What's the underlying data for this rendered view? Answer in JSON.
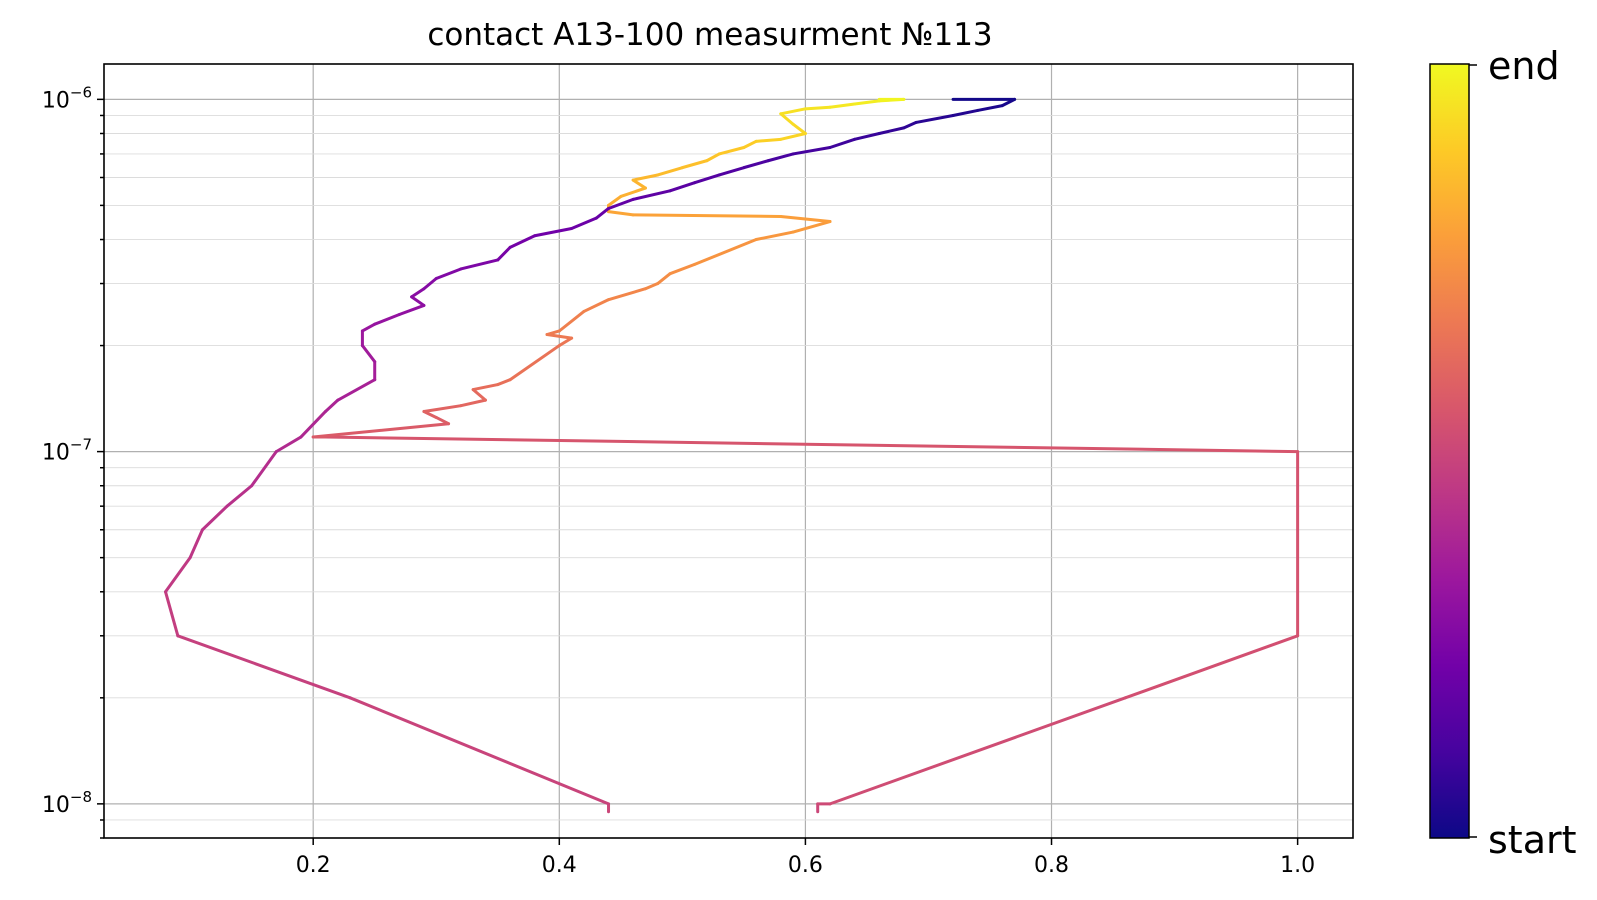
{
  "chart_data": {
    "type": "line",
    "title": "contact A13-100 measurment №113",
    "xlabel": "",
    "ylabel": "",
    "xlim": [
      0.03,
      1.045
    ],
    "ylim": [
      8e-09,
      1.26e-06
    ],
    "xscale": "linear",
    "yscale": "log",
    "grid": true,
    "x_ticks": [
      {
        "value": 0.2,
        "label": "0.2"
      },
      {
        "value": 0.4,
        "label": "0.4"
      },
      {
        "value": 0.6,
        "label": "0.6"
      },
      {
        "value": 0.8,
        "label": "0.8"
      },
      {
        "value": 1.0,
        "label": "1.0"
      }
    ],
    "y_ticks": [
      {
        "value": 1e-08,
        "base": "10",
        "exponent": "−8"
      },
      {
        "value": 1e-07,
        "base": "10",
        "exponent": "−7"
      },
      {
        "value": 1e-06,
        "base": "10",
        "exponent": "−6"
      }
    ],
    "colorbar": {
      "colormap": "plasma",
      "bottom_label": "start",
      "top_label": "end",
      "stops": [
        "#0d0887",
        "#46039f",
        "#7201a8",
        "#9c179e",
        "#bd3786",
        "#d8576b",
        "#ed7953",
        "#fb9f3a",
        "#fdca26",
        "#f0f921"
      ]
    },
    "series": [
      {
        "color_by": "order",
        "x": [
          0.61,
          0.61,
          0.62,
          0.86,
          1.0,
          1.0,
          0.21,
          0.2,
          0.31,
          0.3,
          0.29,
          0.32,
          0.34,
          0.33,
          0.35,
          0.36,
          0.4,
          0.41,
          0.39,
          0.4,
          0.42,
          0.44,
          0.47,
          0.48,
          0.49,
          0.51,
          0.56,
          0.59,
          0.62,
          0.58,
          0.46,
          0.44,
          0.44,
          0.45,
          0.47,
          0.46,
          0.48,
          0.5,
          0.52,
          0.53,
          0.55,
          0.56,
          0.58,
          0.6,
          0.59,
          0.58,
          0.6,
          0.62,
          0.64,
          0.66,
          0.68,
          0.66
        ],
        "y": [
          9.5e-09,
          1e-08,
          1e-08,
          2e-08,
          3e-08,
          1e-07,
          1.1e-07,
          1.1e-07,
          1.2e-07,
          1.25e-07,
          1.3e-07,
          1.35e-07,
          1.4e-07,
          1.5e-07,
          1.55e-07,
          1.6e-07,
          2e-07,
          2.1e-07,
          2.15e-07,
          2.2e-07,
          2.5e-07,
          2.7e-07,
          2.9e-07,
          3e-07,
          3.2e-07,
          3.4e-07,
          4e-07,
          4.2e-07,
          4.5e-07,
          4.65e-07,
          4.7e-07,
          4.8e-07,
          5e-07,
          5.3e-07,
          5.6e-07,
          5.9e-07,
          6.1e-07,
          6.4e-07,
          6.7e-07,
          7e-07,
          7.3e-07,
          7.6e-07,
          7.7e-07,
          8e-07,
          8.5e-07,
          9.1e-07,
          9.4e-07,
          9.5e-07,
          9.7e-07,
          9.9e-07,
          1e-06,
          1e-06
        ]
      },
      {
        "color_by": "order",
        "x": [
          0.44,
          0.44,
          0.23,
          0.09,
          0.08,
          0.1,
          0.11,
          0.13,
          0.15,
          0.17,
          0.19,
          0.21,
          0.22,
          0.25,
          0.25,
          0.24,
          0.24,
          0.25,
          0.27,
          0.29,
          0.28,
          0.29,
          0.3,
          0.32,
          0.35,
          0.36,
          0.38,
          0.41,
          0.43,
          0.44,
          0.46,
          0.49,
          0.51,
          0.53,
          0.55,
          0.57,
          0.59,
          0.62,
          0.64,
          0.66,
          0.68,
          0.69,
          0.72,
          0.74,
          0.76,
          0.77,
          0.72
        ],
        "y": [
          9.5e-09,
          1e-08,
          2e-08,
          3e-08,
          4e-08,
          5e-08,
          6e-08,
          7e-08,
          8e-08,
          1e-07,
          1.1e-07,
          1.3e-07,
          1.4e-07,
          1.6e-07,
          1.8e-07,
          2e-07,
          2.2e-07,
          2.3e-07,
          2.45e-07,
          2.6e-07,
          2.75e-07,
          2.9e-07,
          3.1e-07,
          3.3e-07,
          3.5e-07,
          3.8e-07,
          4.1e-07,
          4.3e-07,
          4.6e-07,
          4.9e-07,
          5.2e-07,
          5.5e-07,
          5.8e-07,
          6.1e-07,
          6.4e-07,
          6.7e-07,
          7e-07,
          7.3e-07,
          7.7e-07,
          8e-07,
          8.3e-07,
          8.6e-07,
          9e-07,
          9.3e-07,
          9.6e-07,
          1e-06,
          1e-06
        ]
      }
    ]
  }
}
